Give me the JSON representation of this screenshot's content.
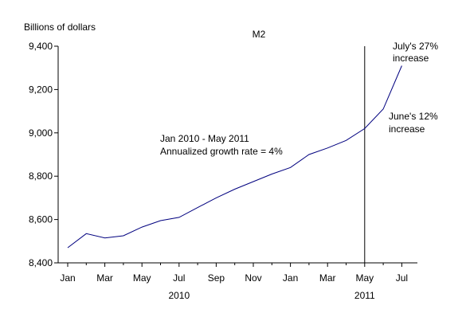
{
  "chart_data": {
    "type": "line",
    "title": "M2",
    "ylabel": "Billions of dollars",
    "xlabel": "",
    "ylim": [
      8400,
      9400
    ],
    "yticks": [
      8400,
      8600,
      8800,
      9000,
      9200,
      9400
    ],
    "ytick_labels": [
      "8,400",
      "8,600",
      "8,800",
      "9,000",
      "9,200",
      "9,400"
    ],
    "grid": false,
    "xtick_labels": [
      "Jan",
      "Mar",
      "May",
      "Jul",
      "Sep",
      "Nov",
      "Jan",
      "Mar",
      "May",
      "Jul"
    ],
    "year_labels": [
      {
        "label": "2010",
        "month_index": 6
      },
      {
        "label": "2011",
        "month_index": 16
      }
    ],
    "x": [
      "2010-01",
      "2010-02",
      "2010-03",
      "2010-04",
      "2010-05",
      "2010-06",
      "2010-07",
      "2010-08",
      "2010-09",
      "2010-10",
      "2010-11",
      "2010-12",
      "2011-01",
      "2011-02",
      "2011-03",
      "2011-04",
      "2011-05",
      "2011-06",
      "2011-07"
    ],
    "series": [
      {
        "values": [
          8470,
          8535,
          8515,
          8525,
          8565,
          8595,
          8610,
          8655,
          8700,
          8740,
          8775,
          8810,
          8840,
          8900,
          8930,
          8965,
          9020,
          9110,
          9310
        ],
        "color": "#00007f"
      }
    ],
    "vline": {
      "x": "2011-05",
      "color": "#000000"
    },
    "annotations": {
      "growth_line1": "Jan 2010 - May 2011",
      "growth_line2": "Annualized growth rate = 4%",
      "june_line1": "June's 12%",
      "june_line2": "increase",
      "july_line1": "July's 27%",
      "july_line2": "increase"
    }
  }
}
